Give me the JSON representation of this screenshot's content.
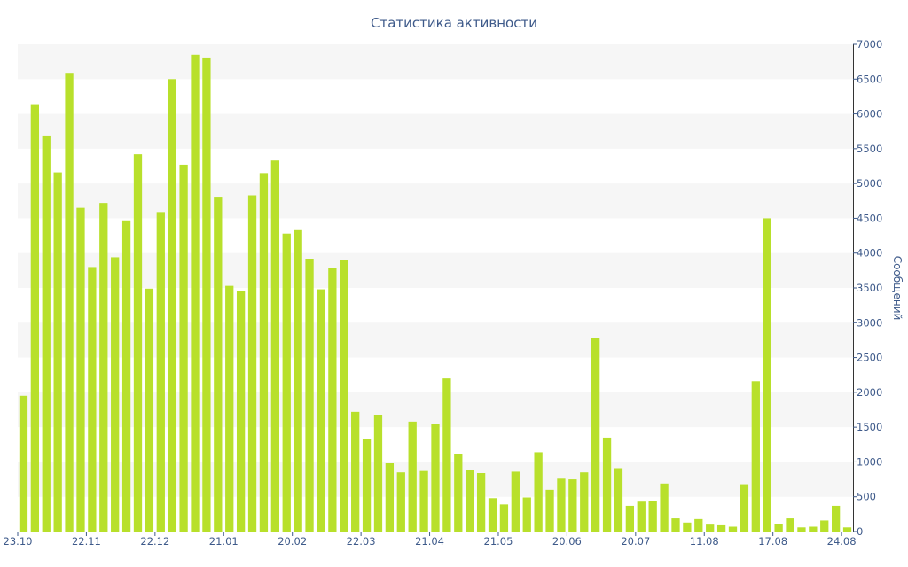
{
  "chart_data": {
    "type": "bar",
    "title": "Статистика активности",
    "ylabel": "Сообщений",
    "xlabel": "",
    "y_axis_position": "right",
    "ylim": [
      0,
      7000
    ],
    "y_ticks": [
      0,
      500,
      1000,
      1500,
      2000,
      2500,
      3000,
      3500,
      4000,
      4500,
      5000,
      5500,
      6000,
      6500,
      7000
    ],
    "x_tick_labels": [
      {
        "label": "23.10",
        "index": 0
      },
      {
        "label": "22.11",
        "index": 6
      },
      {
        "label": "22.12",
        "index": 12
      },
      {
        "label": "21.01",
        "index": 18
      },
      {
        "label": "20.02",
        "index": 24
      },
      {
        "label": "22.03",
        "index": 30
      },
      {
        "label": "21.04",
        "index": 36
      },
      {
        "label": "21.05",
        "index": 42
      },
      {
        "label": "20.06",
        "index": 48
      },
      {
        "label": "20.07",
        "index": 54
      },
      {
        "label": "11.08",
        "index": 60
      },
      {
        "label": "17.08",
        "index": 66
      },
      {
        "label": "24.08",
        "index": 72
      }
    ],
    "alternating_bands": true,
    "bar_color": "#b8e02b",
    "values": [
      1950,
      6140,
      5690,
      5160,
      6590,
      4650,
      3800,
      4720,
      3940,
      4470,
      5420,
      3490,
      4590,
      6500,
      5270,
      6850,
      6810,
      4810,
      3530,
      3450,
      4830,
      5150,
      5330,
      4280,
      4330,
      3920,
      3480,
      3780,
      3900,
      1720,
      1330,
      1680,
      980,
      850,
      1580,
      870,
      1540,
      2200,
      1120,
      890,
      840,
      480,
      390,
      860,
      490,
      1140,
      600,
      760,
      750,
      850,
      2780,
      1350,
      910,
      370,
      430,
      440,
      690,
      190,
      130,
      180,
      100,
      90,
      70,
      680,
      2160,
      4500,
      110,
      190,
      60,
      70,
      160,
      370,
      60
    ]
  }
}
